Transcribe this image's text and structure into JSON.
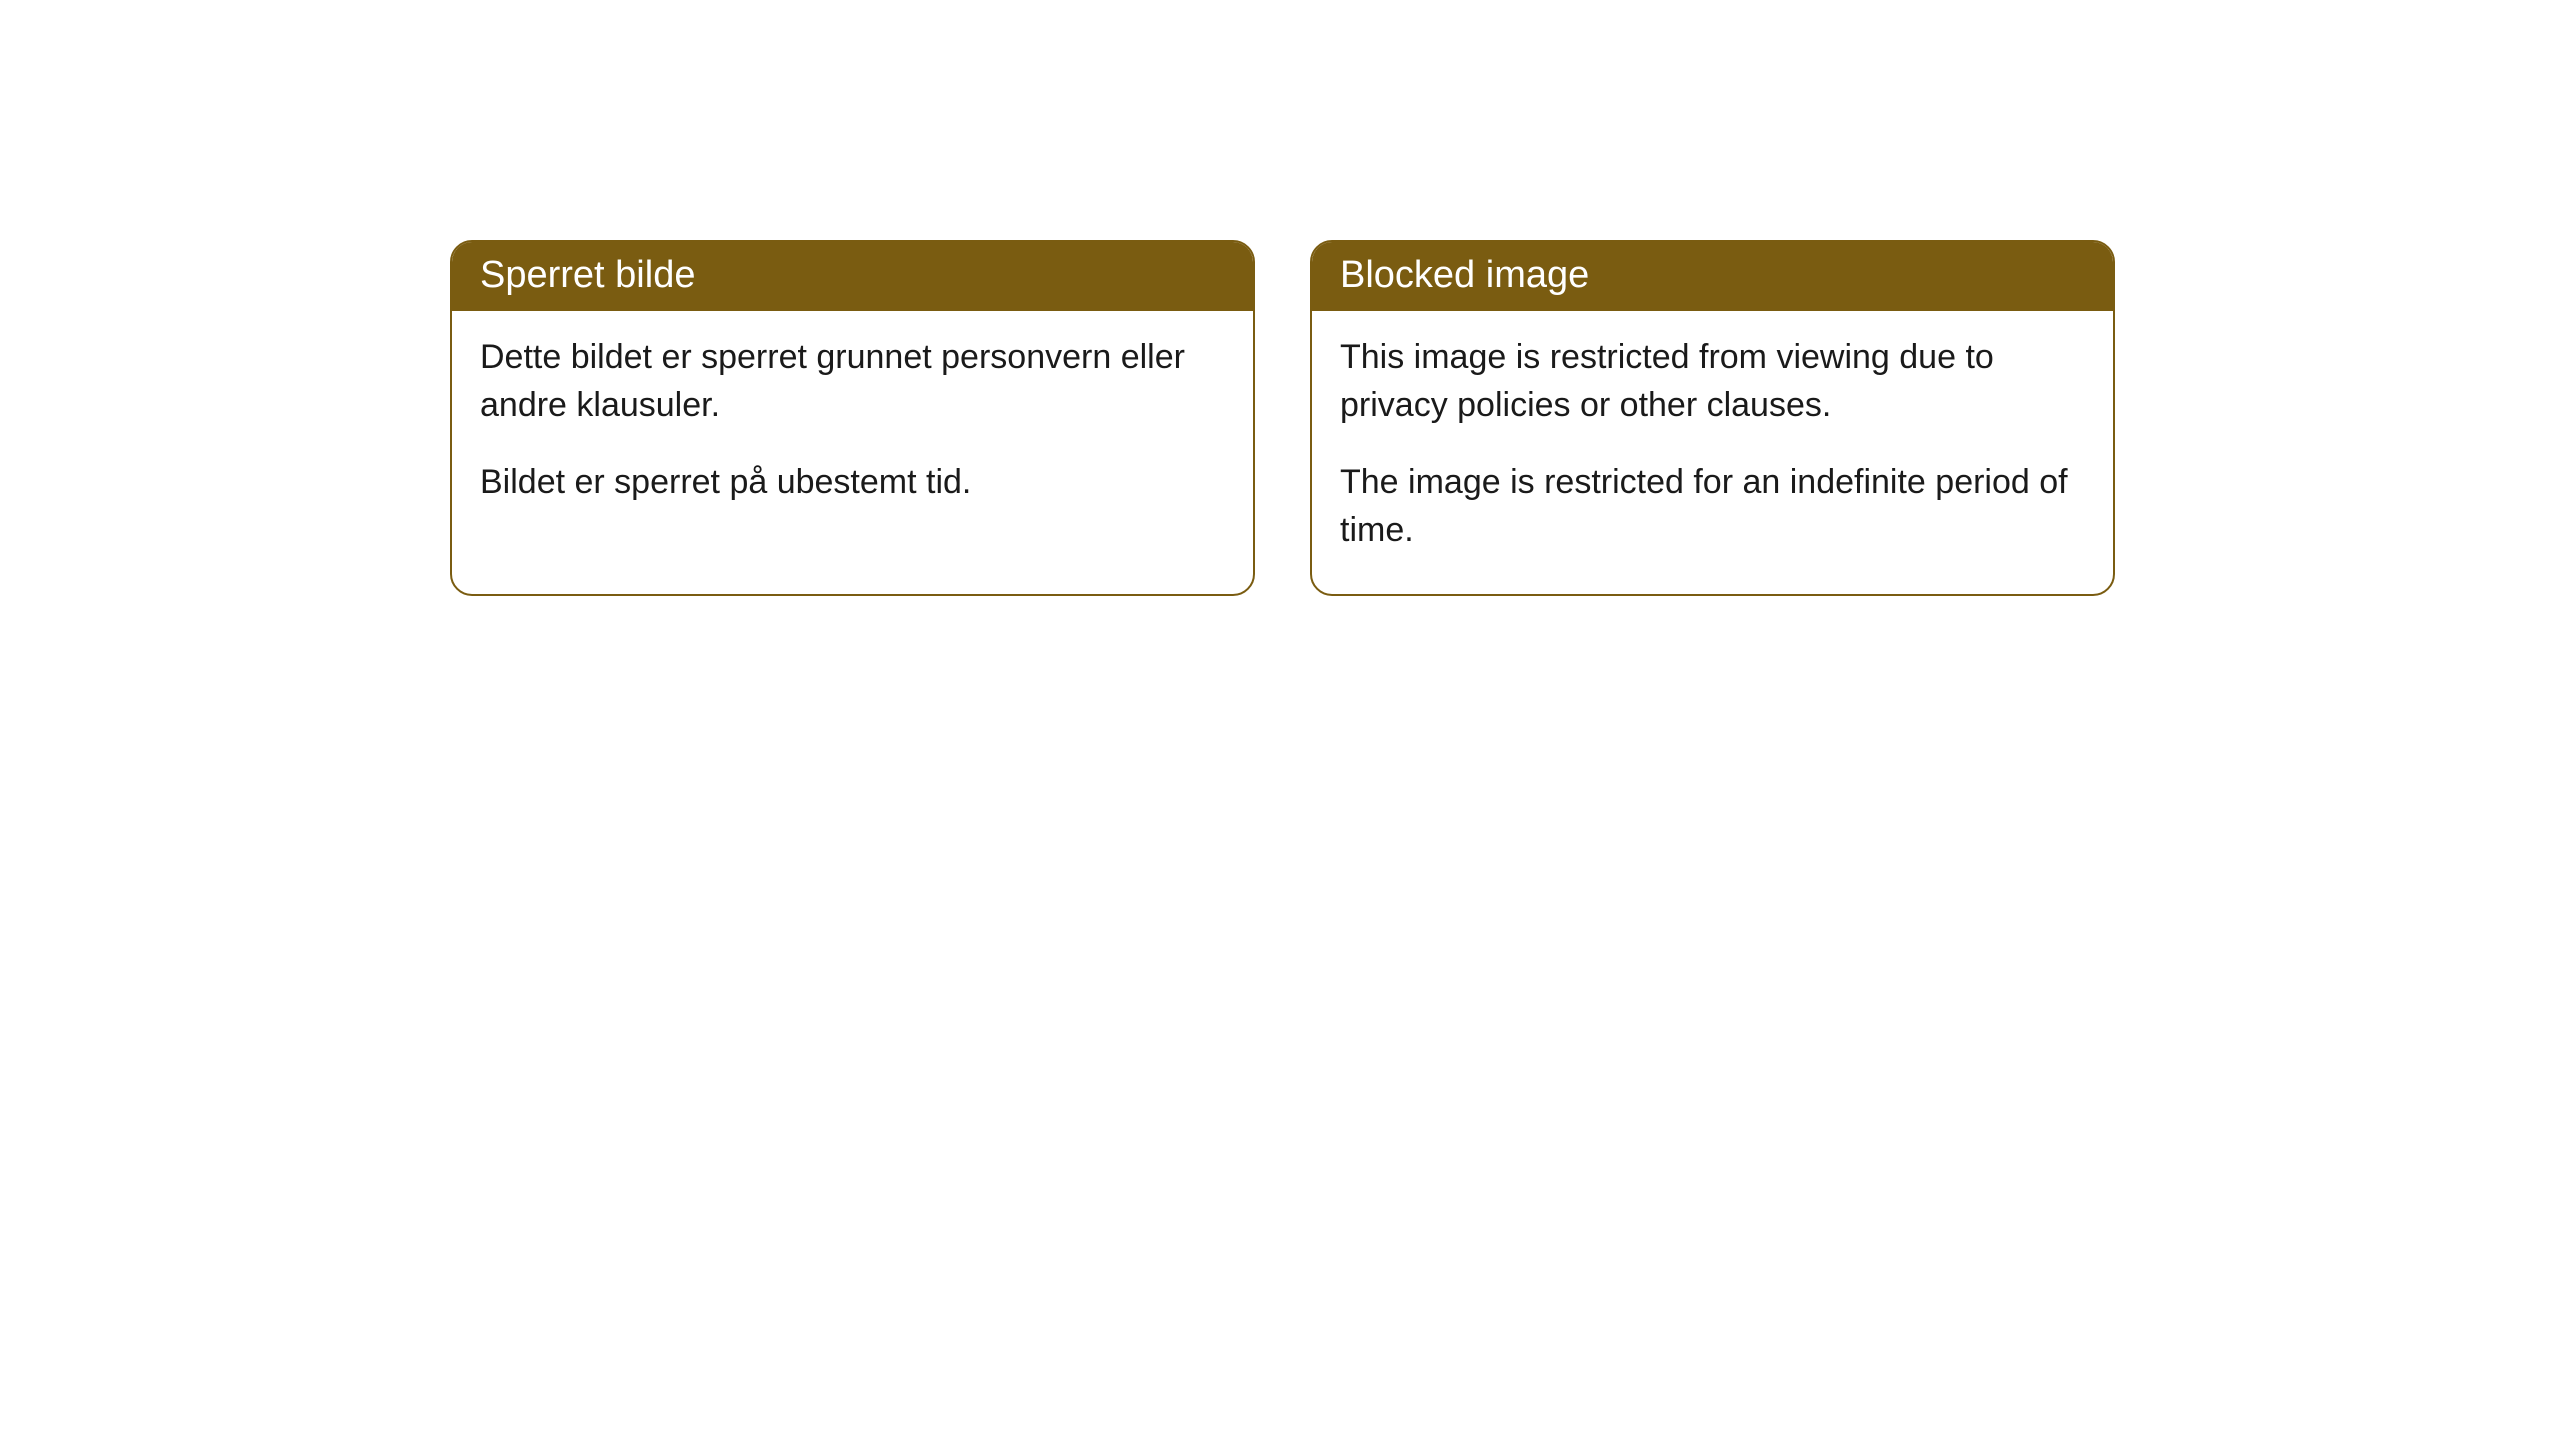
{
  "cards": [
    {
      "title": "Sperret bilde",
      "paragraphs": [
        "Dette bildet er sperret grunnet personvern eller andre klausuler.",
        "Bildet er sperret på ubestemt tid."
      ]
    },
    {
      "title": "Blocked image",
      "paragraphs": [
        "This image is restricted from viewing due to privacy policies or other clauses.",
        "The image is restricted for an indefinite period of time."
      ]
    }
  ],
  "styling": {
    "header_background_color": "#7a5c11",
    "header_text_color": "#ffffff",
    "border_color": "#7a5c11",
    "body_text_color": "#1a1a1a",
    "background_color": "#ffffff",
    "border_radius": 22,
    "title_fontsize": 38,
    "body_fontsize": 34
  }
}
